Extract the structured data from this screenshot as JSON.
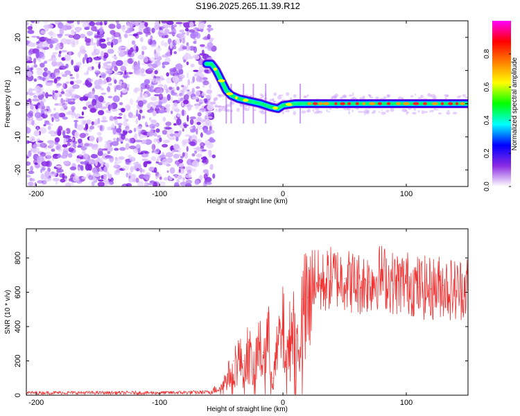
{
  "title": "S196.2025.265.11.39.R12",
  "chart_data": [
    {
      "type": "heatmap",
      "xlabel": "Height of straight line (km)",
      "ylabel": "Frequency (Hz)",
      "xlim": [
        -208,
        150
      ],
      "ylim": [
        -25,
        25
      ],
      "xticks": [
        -200,
        -100,
        0,
        100
      ],
      "xtick_labels": [
        "-200",
        "-100",
        "0",
        "100"
      ],
      "yticks": [
        -20,
        -10,
        0,
        10,
        20
      ],
      "ytick_labels": [
        "-20",
        "-10",
        "0",
        "10",
        "20"
      ],
      "noise_region_x": [
        -208,
        -56
      ],
      "ridge": [
        {
          "x": -62,
          "f": 12
        },
        {
          "x": -58,
          "f": 12
        },
        {
          "x": -54,
          "f": 10
        },
        {
          "x": -50,
          "f": 7
        },
        {
          "x": -46,
          "f": 4
        },
        {
          "x": -42,
          "f": 2.5
        },
        {
          "x": -36,
          "f": 1.5
        },
        {
          "x": -30,
          "f": 1
        },
        {
          "x": -24,
          "f": 0.5
        },
        {
          "x": -18,
          "f": 0
        },
        {
          "x": -10,
          "f": -1
        },
        {
          "x": -4,
          "f": -1.5
        },
        {
          "x": 0,
          "f": -0.5
        },
        {
          "x": 10,
          "f": 0
        },
        {
          "x": 20,
          "f": 0
        },
        {
          "x": 40,
          "f": 0
        },
        {
          "x": 80,
          "f": 0
        },
        {
          "x": 120,
          "f": 0
        },
        {
          "x": 150,
          "f": 0
        }
      ]
    },
    {
      "type": "colorbar",
      "label": "Normalized spectral amplitude",
      "range": [
        0,
        1
      ],
      "ticks": [
        0.0,
        0.2,
        0.4,
        0.6,
        0.8
      ],
      "tick_labels": [
        "0.0",
        "0.2",
        "0.4",
        "0.6",
        "0.8"
      ],
      "colors": [
        "#ffffff",
        "#8a2be2",
        "#0000ff",
        "#00ffff",
        "#00ff00",
        "#ffff00",
        "#ff8000",
        "#ff0000",
        "#ff00ff"
      ]
    },
    {
      "type": "line",
      "xlabel": "Height of straight line (km)",
      "ylabel": "SNR (10 * v/v)",
      "xlim": [
        -208,
        150
      ],
      "ylim": [
        0,
        970
      ],
      "xticks": [
        -200,
        -100,
        0,
        100
      ],
      "xtick_labels": [
        "-200",
        "-100",
        "0",
        "100"
      ],
      "yticks": [
        0,
        200,
        400,
        600,
        800
      ],
      "ytick_labels": [
        "0",
        "200",
        "400",
        "600",
        "800"
      ],
      "color": "#ee3333",
      "series": [
        {
          "name": "SNR",
          "x": [
            -208,
            -150,
            -100,
            -60,
            -50,
            -45,
            -40,
            -36,
            -32,
            -28,
            -24,
            -20,
            -16,
            -12,
            -8,
            -4,
            0,
            4,
            8,
            12,
            16,
            20,
            24,
            26,
            30,
            40,
            50,
            60,
            70,
            80,
            90,
            100,
            110,
            120,
            130,
            140,
            150
          ],
          "values": [
            15,
            15,
            15,
            18,
            60,
            120,
            200,
            250,
            200,
            310,
            150,
            330,
            250,
            380,
            100,
            330,
            430,
            300,
            500,
            320,
            560,
            570,
            610,
            700,
            640,
            690,
            680,
            650,
            660,
            700,
            650,
            660,
            630,
            620,
            640,
            610,
            640
          ]
        }
      ]
    }
  ]
}
